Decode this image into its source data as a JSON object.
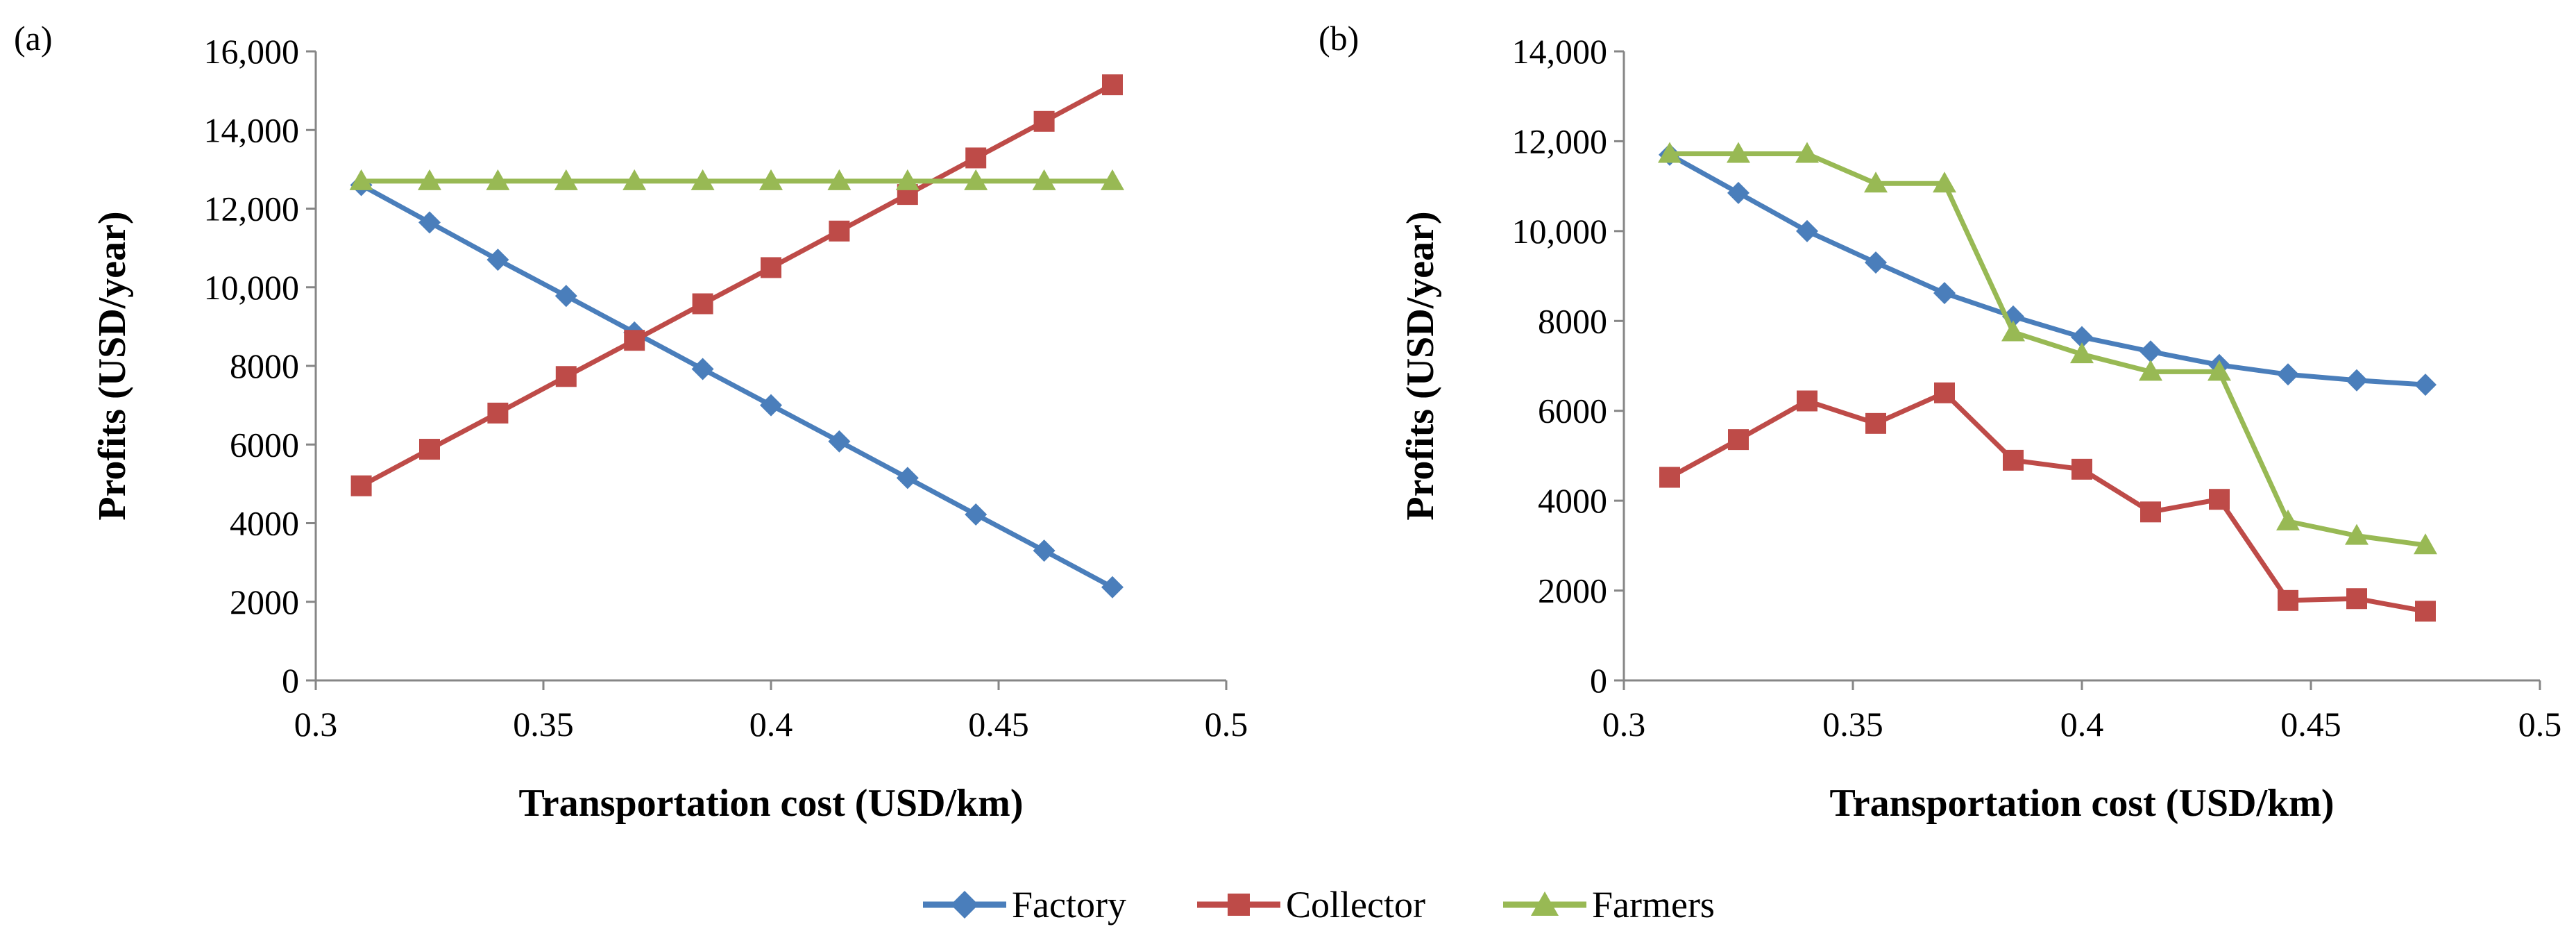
{
  "chart_data": [
    {
      "type": "line",
      "panel_label": "(a)",
      "xlabel": "Transportation cost (USD/km)",
      "ylabel": "Profits (USD/year)",
      "xlim": [
        0.3,
        0.5
      ],
      "ylim": [
        0,
        16000
      ],
      "xticks": [
        0.3,
        0.35,
        0.4,
        0.45,
        0.5
      ],
      "xtick_labels": [
        "0.3",
        "0.35",
        "0.4",
        "0.45",
        "0.5"
      ],
      "yticks": [
        0,
        2000,
        4000,
        6000,
        8000,
        10000,
        12000,
        14000,
        16000
      ],
      "ytick_labels": [
        "0",
        "2000",
        "4000",
        "6000",
        "8000",
        "10,000",
        "12,000",
        "14,000",
        "16,000"
      ],
      "grid": false,
      "x": [
        0.31,
        0.325,
        0.34,
        0.355,
        0.37,
        0.385,
        0.4,
        0.415,
        0.43,
        0.445,
        0.46,
        0.475
      ],
      "series": [
        {
          "name": "Factory",
          "values": [
            12600,
            11650,
            10700,
            9780,
            8850,
            7920,
            7000,
            6080,
            5150,
            4220,
            3300,
            2370
          ]
        },
        {
          "name": "Collector",
          "values": [
            4950,
            5880,
            6800,
            7730,
            8650,
            9580,
            10500,
            11430,
            12360,
            13290,
            14220,
            15150
          ]
        },
        {
          "name": "Farmers",
          "values": [
            12700,
            12700,
            12700,
            12700,
            12700,
            12700,
            12700,
            12700,
            12700,
            12700,
            12700,
            12700
          ]
        }
      ]
    },
    {
      "type": "line",
      "panel_label": "(b)",
      "xlabel": "Transportation cost (USD/km)",
      "ylabel": "Profits (USD/year)",
      "xlim": [
        0.3,
        0.5
      ],
      "ylim": [
        0,
        14000
      ],
      "xticks": [
        0.3,
        0.35,
        0.4,
        0.45,
        0.5
      ],
      "xtick_labels": [
        "0.3",
        "0.35",
        "0.4",
        "0.45",
        "0.5"
      ],
      "yticks": [
        0,
        2000,
        4000,
        6000,
        8000,
        10000,
        12000,
        14000
      ],
      "ytick_labels": [
        "0",
        "2000",
        "4000",
        "6000",
        "8000",
        "10,000",
        "12,000",
        "14,000"
      ],
      "grid": false,
      "x": [
        0.31,
        0.325,
        0.34,
        0.355,
        0.37,
        0.385,
        0.4,
        0.415,
        0.43,
        0.445,
        0.46,
        0.475
      ],
      "series": [
        {
          "name": "Factory",
          "values": [
            11700,
            10850,
            10000,
            9300,
            8620,
            8100,
            7640,
            7320,
            7020,
            6810,
            6680,
            6580
          ]
        },
        {
          "name": "Collector",
          "values": [
            4520,
            5360,
            6220,
            5720,
            6400,
            4900,
            4700,
            3750,
            4030,
            1780,
            1820,
            1540
          ]
        },
        {
          "name": "Farmers",
          "values": [
            11720,
            11720,
            11720,
            11060,
            11060,
            7750,
            7260,
            6870,
            6870,
            3540,
            3220,
            3010
          ]
        }
      ]
    }
  ],
  "legend": {
    "position": "bottom-center",
    "items": [
      {
        "label": "Factory",
        "color": "#4a7ebb",
        "marker": "diamond"
      },
      {
        "label": "Collector",
        "color": "#be4b48",
        "marker": "square"
      },
      {
        "label": "Farmers",
        "color": "#98b954",
        "marker": "triangle"
      }
    ]
  },
  "colors": {
    "Factory": "#4a7ebb",
    "Collector": "#be4b48",
    "Farmers": "#98b954",
    "axis": "#868686"
  }
}
